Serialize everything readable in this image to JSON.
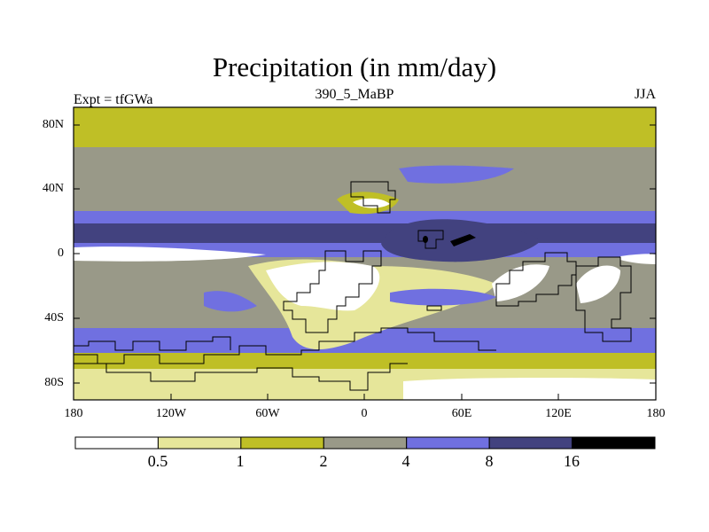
{
  "title": "Precipitation (in mm/day)",
  "experiment": "Expt = tfGWa",
  "period": "390_5_MaBP",
  "season": "JJA",
  "lat_labels": [
    "80N",
    "40N",
    "0",
    "40S",
    "80S"
  ],
  "lon_labels": [
    "180",
    "120W",
    "60W",
    "0",
    "60E",
    "120E",
    "180"
  ],
  "colorbar": {
    "labels": [
      "0.5",
      "1",
      "2",
      "4",
      "8",
      "16"
    ],
    "colors": [
      "#ffffff",
      "#e6e69a",
      "#bfbf26",
      "#999988",
      "#7070e0",
      "#42427f",
      "#000000"
    ]
  }
}
